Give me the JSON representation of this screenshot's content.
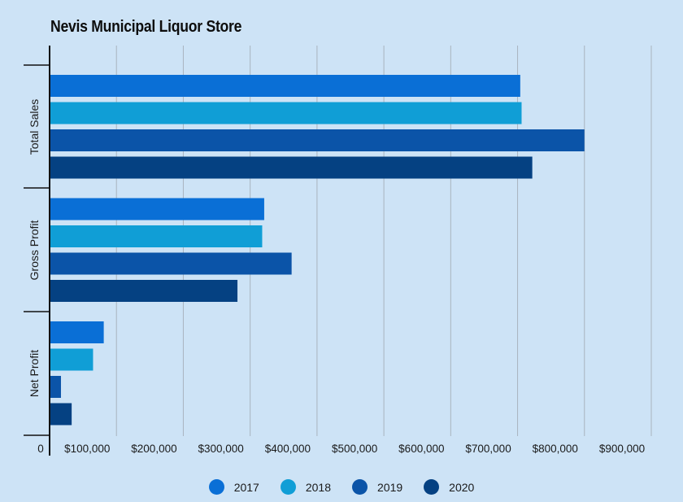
{
  "chart_data": {
    "type": "bar",
    "orientation": "horizontal",
    "title": "Nevis Municipal Liquor Store",
    "categories": [
      "Total Sales",
      "Gross Profit",
      "Net Profit"
    ],
    "series": [
      {
        "name": "2017",
        "color": "#0a6fd6",
        "values": [
          704000,
          321000,
          81000
        ]
      },
      {
        "name": "2018",
        "color": "#109ed6",
        "values": [
          706000,
          318000,
          65000
        ]
      },
      {
        "name": "2019",
        "color": "#0b54a8",
        "values": [
          800000,
          362000,
          17000
        ]
      },
      {
        "name": "2020",
        "color": "#054182",
        "values": [
          722000,
          281000,
          33000
        ]
      }
    ],
    "xlim": [
      0,
      900000
    ],
    "x_ticks": [
      0,
      100000,
      200000,
      300000,
      400000,
      500000,
      600000,
      700000,
      800000,
      900000
    ],
    "x_tick_labels": [
      "0",
      "$100,000",
      "$200,000",
      "$300,000",
      "$400,000",
      "$500,000",
      "$600,000",
      "$700,000",
      "$800,000",
      "$900,000"
    ],
    "xlabel": "",
    "ylabel": "",
    "grid": true,
    "legend_position": "bottom-center"
  }
}
